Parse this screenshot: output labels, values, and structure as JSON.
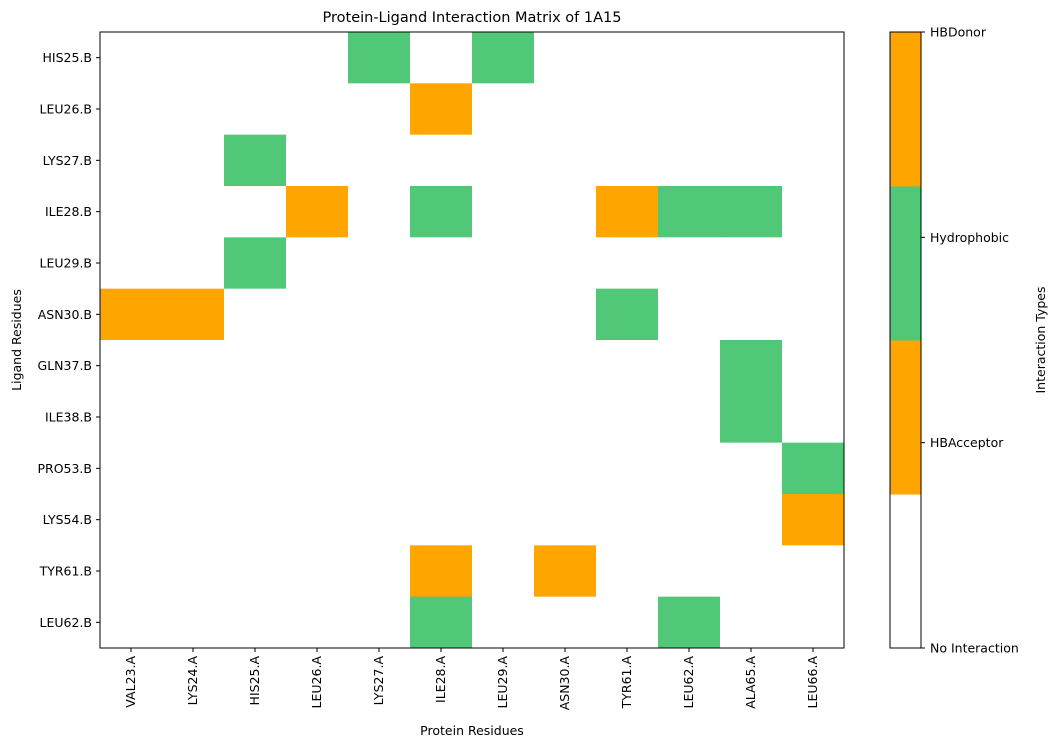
{
  "chart_data": {
    "type": "heatmap",
    "title": "Protein-Ligand Interaction Matrix of 1A15",
    "xlabel": "Protein Residues",
    "ylabel": "Ligand Residues",
    "x_categories": [
      "VAL23.A",
      "LYS24.A",
      "HIS25.A",
      "LEU26.A",
      "LYS27.A",
      "ILE28.A",
      "LEU29.A",
      "ASN30.A",
      "TYR61.A",
      "LEU62.A",
      "ALA65.A",
      "LEU66.A"
    ],
    "y_categories": [
      "HIS25.B",
      "LEU26.B",
      "LYS27.B",
      "ILE28.B",
      "LEU29.B",
      "ASN30.B",
      "GLN37.B",
      "ILE38.B",
      "PRO53.B",
      "LYS54.B",
      "TYR61.B",
      "LEU62.B"
    ],
    "matrix": [
      [
        0,
        0,
        0,
        0,
        2,
        0,
        2,
        0,
        0,
        0,
        0,
        0
      ],
      [
        0,
        0,
        0,
        0,
        0,
        3,
        0,
        0,
        0,
        0,
        0,
        0
      ],
      [
        0,
        0,
        2,
        0,
        0,
        0,
        0,
        0,
        0,
        0,
        0,
        0
      ],
      [
        0,
        0,
        0,
        3,
        0,
        2,
        0,
        0,
        3,
        2,
        2,
        0
      ],
      [
        0,
        0,
        2,
        0,
        0,
        0,
        0,
        0,
        0,
        0,
        0,
        0
      ],
      [
        1,
        1,
        0,
        0,
        0,
        0,
        0,
        0,
        2,
        0,
        0,
        0
      ],
      [
        0,
        0,
        0,
        0,
        0,
        0,
        0,
        0,
        0,
        0,
        2,
        0
      ],
      [
        0,
        0,
        0,
        0,
        0,
        0,
        0,
        0,
        0,
        0,
        2,
        0
      ],
      [
        0,
        0,
        0,
        0,
        0,
        0,
        0,
        0,
        0,
        0,
        0,
        2
      ],
      [
        0,
        0,
        0,
        0,
        0,
        0,
        0,
        0,
        0,
        0,
        0,
        1
      ],
      [
        0,
        0,
        0,
        0,
        0,
        3,
        0,
        1,
        0,
        0,
        0,
        0
      ],
      [
        0,
        0,
        0,
        0,
        0,
        2,
        0,
        0,
        0,
        2,
        0,
        0
      ]
    ],
    "colorbar": {
      "label": "Interaction Types",
      "levels": [
        {
          "name": "No Interaction",
          "color": "#ffffff"
        },
        {
          "name": "HBAcceptor",
          "color": "#ffa500"
        },
        {
          "name": "Hydrophobic",
          "color": "#50c878"
        },
        {
          "name": "HBDonor",
          "color": "#ffa500"
        }
      ],
      "tick_labels": [
        "No Interaction",
        "HBAcceptor",
        "Hydrophobic",
        "HBDonor"
      ]
    },
    "grid": false
  }
}
